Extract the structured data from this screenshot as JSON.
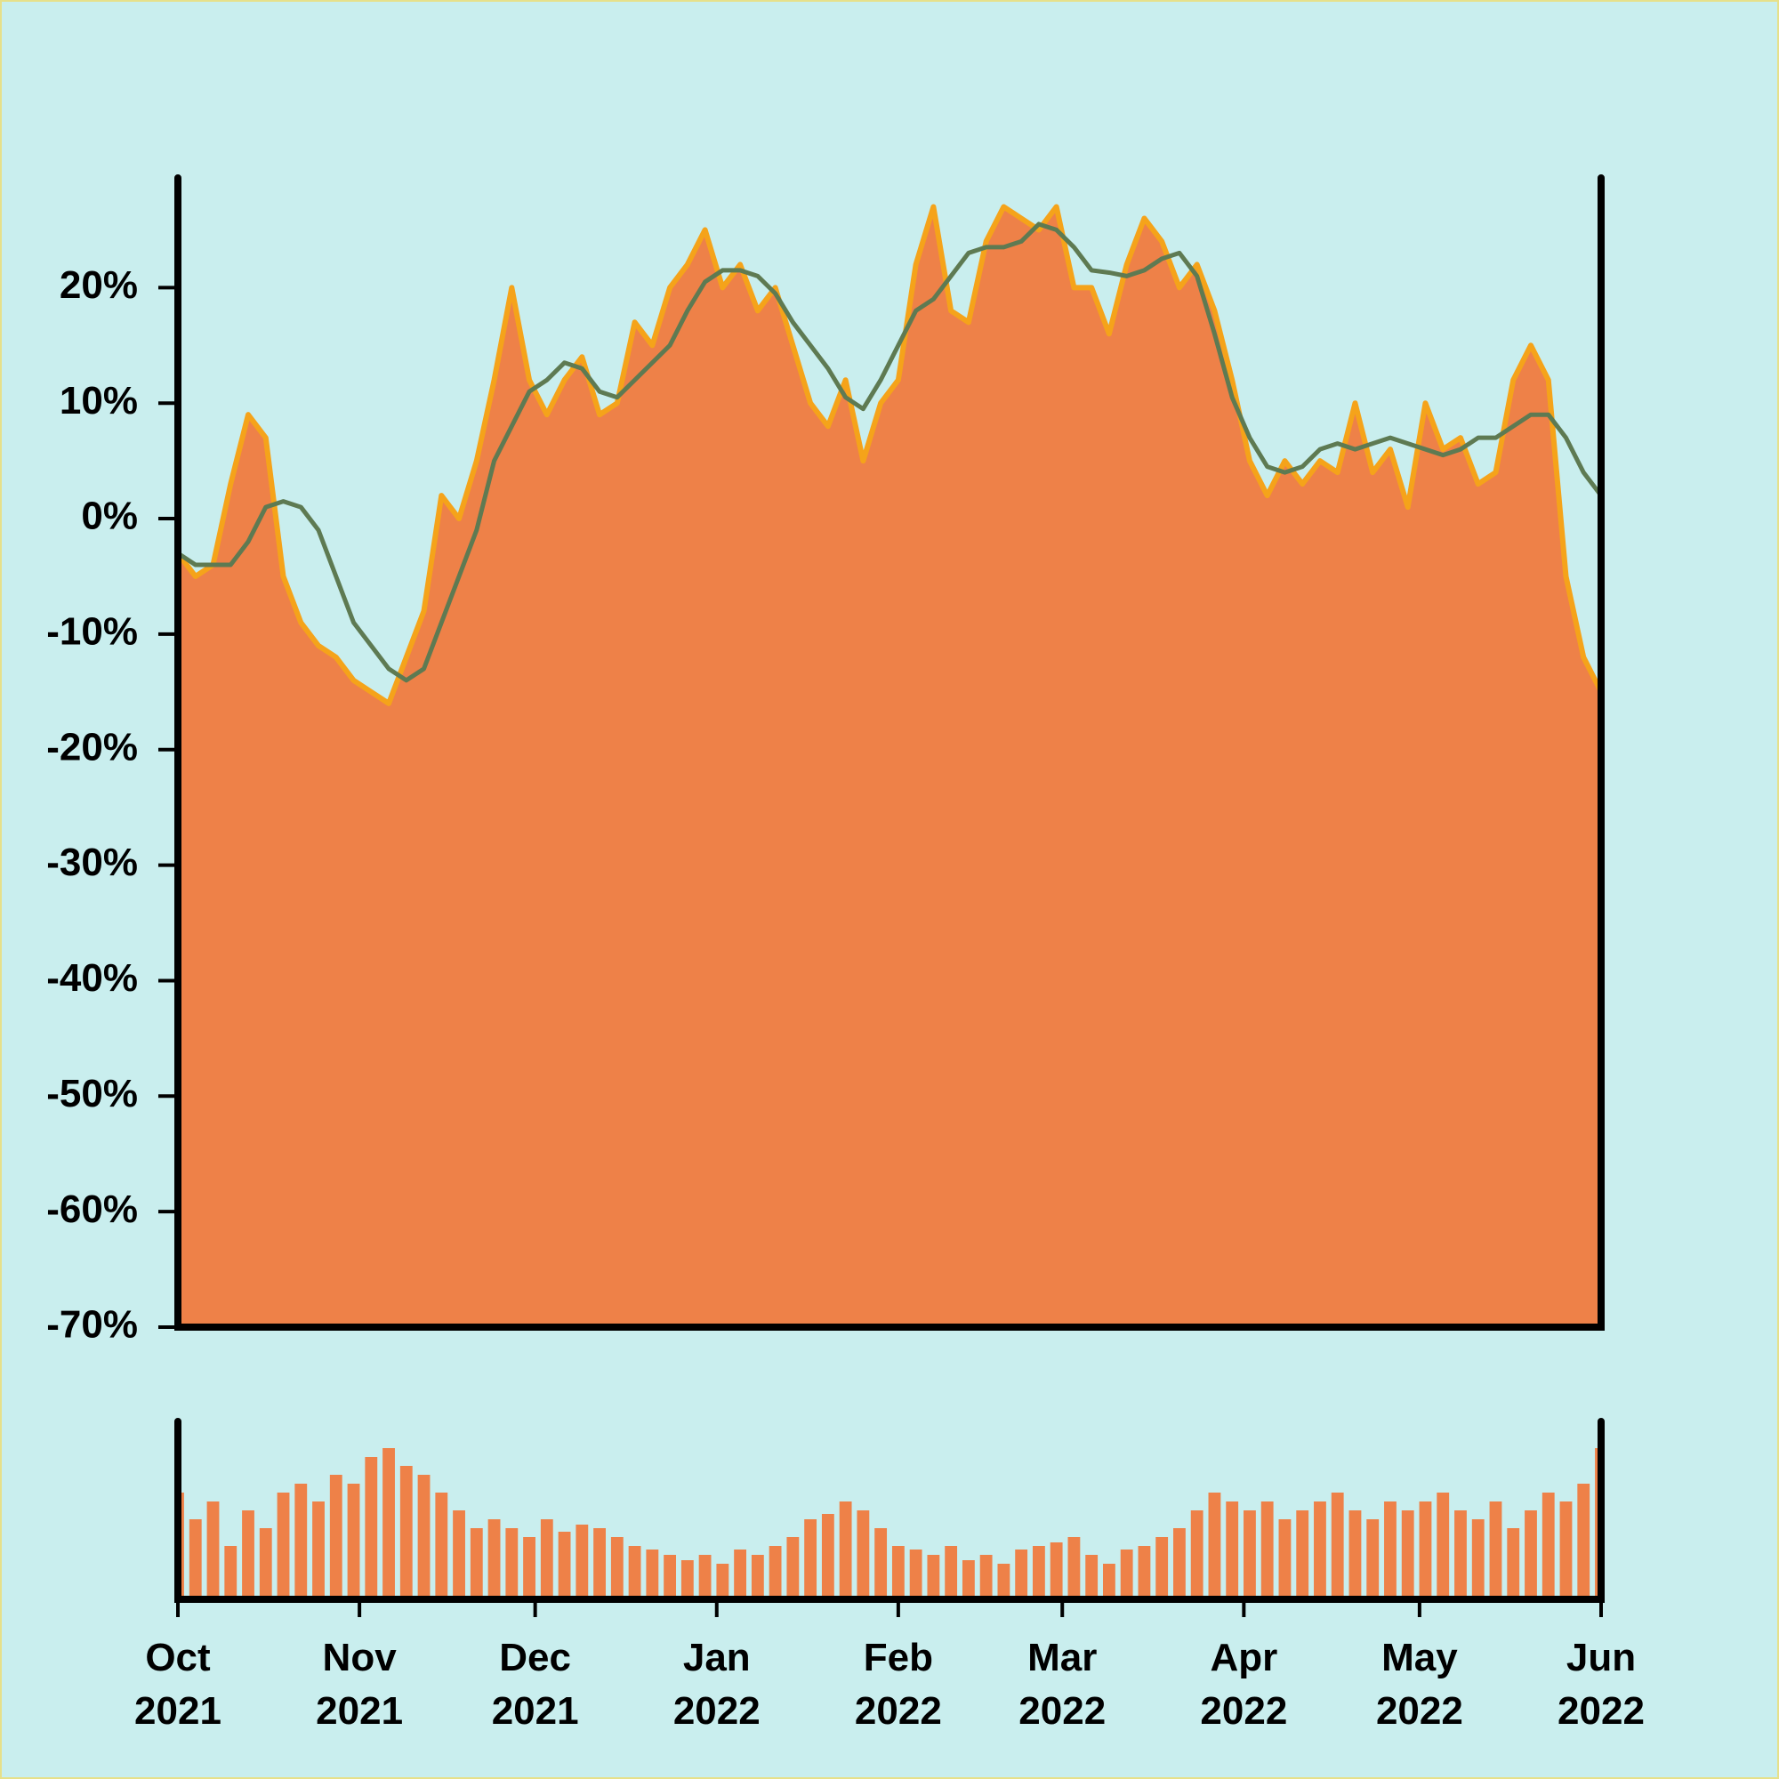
{
  "chart_data": [
    {
      "type": "area",
      "x": [
        0,
        3,
        6,
        9,
        12,
        15,
        18,
        21,
        24,
        27,
        30,
        33,
        36,
        39,
        42,
        45,
        48,
        51,
        54,
        57,
        60,
        63,
        66,
        69,
        72,
        75,
        78,
        81,
        84,
        87,
        90,
        93,
        96,
        99,
        102,
        105,
        108,
        111,
        114,
        117,
        120,
        123,
        126,
        129,
        132,
        135,
        138,
        141,
        144,
        147,
        150,
        153,
        156,
        159,
        162,
        165,
        168,
        171,
        174,
        177,
        180,
        183,
        186,
        189,
        192,
        195,
        198,
        201,
        204,
        207,
        210,
        213,
        216,
        219,
        222,
        225,
        228,
        231,
        234,
        237,
        240,
        243
      ],
      "xlim": [
        0,
        243
      ],
      "ylim": [
        -70,
        29.5
      ],
      "yticks": [
        {
          "value": -70,
          "label": "-70%"
        },
        {
          "value": -60,
          "label": "-60%"
        },
        {
          "value": -50,
          "label": "-50%"
        },
        {
          "value": -40,
          "label": "-40%"
        },
        {
          "value": -30,
          "label": "-30%"
        },
        {
          "value": -20,
          "label": "-20%"
        },
        {
          "value": -10,
          "label": "-10%"
        },
        {
          "value": 0,
          "label": "0%"
        },
        {
          "value": 10,
          "label": "10%"
        },
        {
          "value": 20,
          "label": "20%"
        }
      ],
      "series": [
        {
          "type": "area",
          "color": "#ee8148",
          "edge_color": "#f5a31a",
          "values": [
            -3,
            -5,
            -4,
            3,
            9,
            7,
            -5,
            -9,
            -11,
            -12,
            -14,
            -15,
            -16,
            -12,
            -8,
            2,
            0,
            5,
            12,
            20,
            12,
            9,
            12,
            14,
            9,
            10,
            17,
            15,
            20,
            22,
            25,
            20,
            22,
            18,
            20,
            15,
            10,
            8,
            12,
            5,
            10,
            12,
            22,
            27,
            18,
            17,
            24,
            27,
            26,
            25,
            27,
            20,
            20,
            16,
            22,
            26,
            24,
            20,
            22,
            18,
            12,
            5,
            2,
            5,
            3,
            5,
            4,
            10,
            4,
            6,
            1,
            10,
            6,
            7,
            3,
            4,
            12,
            15,
            12,
            -5,
            -12,
            -15
          ]
        },
        {
          "type": "line",
          "color": "#5e7a52",
          "values": [
            -3,
            -4,
            -4,
            -4,
            -2,
            1,
            1.5,
            1,
            -1,
            -5,
            -9,
            -11,
            -13,
            -14,
            -13,
            -9,
            -5,
            -1,
            5,
            8,
            11,
            12,
            13.5,
            13,
            11,
            10.5,
            12,
            13.5,
            15,
            18,
            20.5,
            21.5,
            21.5,
            21,
            19.5,
            17,
            15,
            13,
            10.5,
            9.5,
            12,
            15,
            18,
            19,
            21,
            23,
            23.5,
            23.5,
            24,
            25.5,
            25,
            23.5,
            21.5,
            21.3,
            21,
            21.5,
            22.5,
            23,
            21,
            16,
            10.5,
            7,
            4.5,
            4,
            4.5,
            6,
            6.5,
            6,
            6.5,
            7,
            6.5,
            6,
            5.5,
            6,
            7,
            7,
            8,
            9,
            9,
            7,
            4,
            2
          ]
        }
      ]
    },
    {
      "type": "bar",
      "x": [
        0,
        3,
        6,
        9,
        12,
        15,
        18,
        21,
        24,
        27,
        30,
        33,
        36,
        39,
        42,
        45,
        48,
        51,
        54,
        57,
        60,
        63,
        66,
        69,
        72,
        75,
        78,
        81,
        84,
        87,
        90,
        93,
        96,
        99,
        102,
        105,
        108,
        111,
        114,
        117,
        120,
        123,
        126,
        129,
        132,
        135,
        138,
        141,
        144,
        147,
        150,
        153,
        156,
        159,
        162,
        165,
        168,
        171,
        174,
        177,
        180,
        183,
        186,
        189,
        192,
        195,
        198,
        201,
        204,
        207,
        210,
        213,
        216,
        219,
        222,
        225,
        228,
        231,
        234,
        237,
        240,
        243
      ],
      "xlim": [
        0,
        243
      ],
      "ylim": [
        0,
        100
      ],
      "color": "#ee8148",
      "values": [
        60,
        45,
        55,
        30,
        50,
        40,
        60,
        65,
        55,
        70,
        65,
        80,
        85,
        75,
        70,
        60,
        50,
        40,
        45,
        40,
        35,
        45,
        38,
        42,
        40,
        35,
        30,
        28,
        25,
        22,
        25,
        20,
        28,
        25,
        30,
        35,
        45,
        48,
        55,
        50,
        40,
        30,
        28,
        25,
        30,
        22,
        25,
        20,
        28,
        30,
        32,
        35,
        25,
        20,
        28,
        30,
        35,
        40,
        50,
        60,
        55,
        50,
        55,
        45,
        50,
        55,
        60,
        50,
        45,
        55,
        50,
        55,
        60,
        50,
        45,
        55,
        40,
        50,
        60,
        55,
        65,
        85
      ],
      "xticks": [
        {
          "value": 0,
          "label": "Oct 2021"
        },
        {
          "value": 31,
          "label": "Nov 2021"
        },
        {
          "value": 61,
          "label": "Dec 2021"
        },
        {
          "value": 92,
          "label": "Jan 2022"
        },
        {
          "value": 123,
          "label": "Feb 2022"
        },
        {
          "value": 151,
          "label": "Mar 2022"
        },
        {
          "value": 182,
          "label": "Apr 2022"
        },
        {
          "value": 212,
          "label": "May 2022"
        },
        {
          "value": 243,
          "label": "Jun 2022"
        }
      ]
    }
  ]
}
